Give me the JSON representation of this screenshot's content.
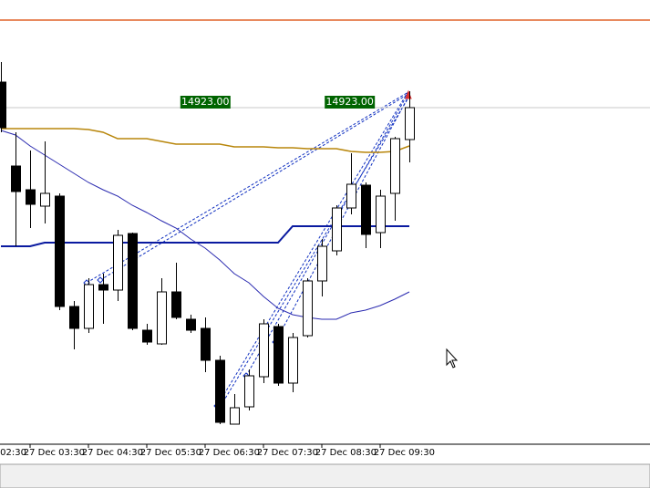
{
  "chart_data": {
    "type": "candlestick",
    "xlim": [
      -0.0625,
      44.5
    ],
    "ylim": [
      14739.5,
      14972
    ],
    "open": [
      14937,
      14891,
      14878,
      14869,
      14874.5,
      14814,
      14802,
      14826,
      14823,
      14854,
      14801,
      14793.5,
      14822,
      14807,
      14802,
      14784.5,
      14749.5,
      14759,
      14775.5,
      14803,
      14772,
      14798,
      14828,
      14844.5,
      14868,
      14880.5,
      14854.5,
      14876,
      14905.5
    ],
    "high": [
      14948,
      14909.5,
      14899.5,
      14904.5,
      14876,
      14817,
      14829.5,
      14832,
      14856,
      14854.5,
      14804.5,
      14829.5,
      14838,
      14809.5,
      14808,
      14787,
      14766,
      14779.5,
      14807,
      14804.5,
      14799.5,
      14829.5,
      14851,
      14869.5,
      14898,
      14882,
      14878,
      14907,
      14932
    ],
    "low": [
      14909.5,
      14847,
      14857,
      14859.5,
      14812,
      14790.5,
      14799.5,
      14804.5,
      14817,
      14801,
      14793,
      14793,
      14807,
      14799.5,
      14778,
      14749.5,
      14749.5,
      14757,
      14772,
      14770.5,
      14767,
      14797,
      14819.5,
      14842,
      14864.5,
      14846,
      14846,
      14861,
      14893
    ],
    "close": [
      14912,
      14877,
      14870,
      14876,
      14814,
      14802,
      14826,
      14823,
      14853,
      14802,
      14794.5,
      14822,
      14808,
      14801,
      14784.5,
      14750.5,
      14758.5,
      14776,
      14804.5,
      14772,
      14797,
      14828,
      14847,
      14868,
      14881,
      14853.5,
      14874.5,
      14906,
      14923
    ],
    "lines": [
      {
        "color": "#b8860b",
        "values": [
          14911.5,
          14911.5,
          14911.5,
          14911.5,
          14911.5,
          14911.5,
          14911,
          14909.5,
          14906,
          14906,
          14906,
          14904.5,
          14903,
          14903,
          14903,
          14903,
          14901.5,
          14901.5,
          14901.5,
          14901,
          14901,
          14900.5,
          14900.5,
          14900.5,
          14899,
          14898.5,
          14898.5,
          14899,
          14902
        ]
      },
      {
        "color": "#0a1aa0",
        "values": [
          14847,
          14847,
          14847,
          14849,
          14849,
          14849,
          14849,
          14849,
          14849,
          14849,
          14849,
          14849,
          14849,
          14849,
          14849,
          14849,
          14849,
          14849,
          14849,
          14849,
          14858,
          14858,
          14858,
          14858,
          14858,
          14858,
          14858,
          14858,
          14858
        ]
      },
      {
        "color": "#2a2ab0",
        "values": [
          14910.5,
          14908,
          14902,
          14897,
          14892,
          14887,
          14882,
          14878,
          14874.5,
          14869.5,
          14865.5,
          14861,
          14857,
          14851,
          14846,
          14839.5,
          14832,
          14827,
          14819.5,
          14813,
          14809.5,
          14808,
          14807,
          14807,
          14810.5,
          14812,
          14814.5,
          14818,
          14822
        ]
      }
    ],
    "price_line": {
      "value": 14923,
      "labels": [
        "14923.00",
        "14923.00"
      ]
    },
    "xticks": [
      {
        "value": -2,
        "label": "02:30"
      },
      {
        "value": 2,
        "label": "27 Dec 03:30"
      },
      {
        "value": 6,
        "label": "27 Dec 04:30"
      },
      {
        "value": 10,
        "label": "27 Dec 05:30"
      },
      {
        "value": 14,
        "label": "27 Dec 06:30"
      },
      {
        "value": 18,
        "label": "27 Dec 07:30"
      },
      {
        "value": 22,
        "label": "27 Dec 08:30"
      },
      {
        "value": 26,
        "label": "27 Dec 09:30"
      }
    ]
  }
}
